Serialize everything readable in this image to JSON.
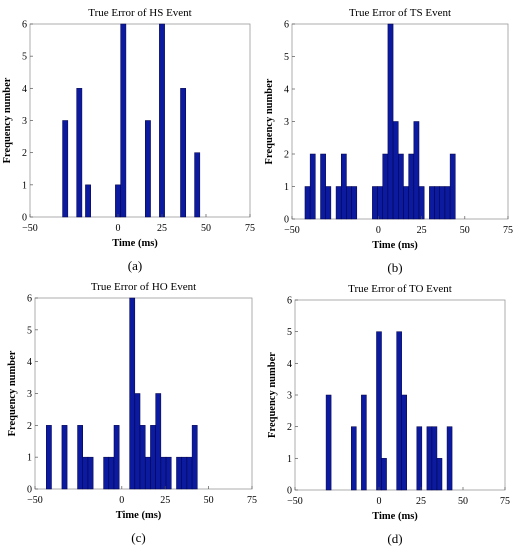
{
  "chart_data": [
    {
      "type": "bar",
      "panel_label": "(a)",
      "title": "True Error of HS Event",
      "xlabel": "Time (ms)",
      "ylabel": "Frequency number",
      "xlim": [
        -50,
        75
      ],
      "ylim": [
        0,
        6
      ],
      "xticks": [
        -50,
        0,
        25,
        50,
        75
      ],
      "yticks": [
        0,
        1,
        2,
        3,
        4,
        5,
        6
      ],
      "bar_width": 3,
      "x": [
        -30,
        -22,
        -17,
        0,
        3,
        17,
        25,
        37,
        45
      ],
      "values": [
        3,
        4,
        1,
        1,
        6,
        3,
        6,
        4,
        2
      ],
      "bar_color": "#0b1a9e",
      "grid": false
    },
    {
      "type": "bar",
      "panel_label": "(b)",
      "title": "True Error of TS Event",
      "xlabel": "Time (ms)",
      "ylabel": "Frequency number",
      "xlim": [
        -50,
        75
      ],
      "ylim": [
        0,
        6
      ],
      "xticks": [
        -50,
        0,
        25,
        50,
        75
      ],
      "yticks": [
        0,
        1,
        2,
        3,
        4,
        5,
        6
      ],
      "bar_width": 3,
      "x": [
        -41,
        -38,
        -35,
        -32,
        -29,
        -26,
        -23,
        -20,
        -17,
        -14,
        -11,
        -8,
        -5,
        -2,
        1,
        4,
        7,
        10,
        13,
        16,
        19,
        22,
        25,
        28,
        31,
        34,
        37,
        40,
        43,
        46,
        49,
        52
      ],
      "values": [
        1,
        2,
        0,
        2,
        1,
        0,
        1,
        2,
        1,
        1,
        0,
        0,
        0,
        1,
        1,
        2,
        6,
        3,
        2,
        1,
        2,
        3,
        1,
        0,
        1,
        1,
        1,
        1,
        2,
        0,
        0,
        0
      ],
      "bar_color": "#0b1a9e",
      "grid": false
    },
    {
      "type": "bar",
      "panel_label": "(c)",
      "title": "True Error of HO Event",
      "xlabel": "Time (ms)",
      "ylabel": "Frequency number",
      "xlim": [
        -50,
        75
      ],
      "ylim": [
        0,
        6
      ],
      "xticks": [
        -50,
        0,
        25,
        50,
        75
      ],
      "yticks": [
        0,
        1,
        2,
        3,
        4,
        5,
        6
      ],
      "bar_width": 3,
      "x": [
        -42,
        -33,
        -24,
        -21,
        -18,
        -9,
        -6,
        -3,
        6,
        9,
        12,
        15,
        18,
        21,
        24,
        27,
        33,
        36,
        39,
        42,
        45,
        48
      ],
      "values": [
        2,
        2,
        2,
        1,
        1,
        1,
        1,
        2,
        6,
        3,
        2,
        1,
        2,
        3,
        1,
        1,
        1,
        1,
        1,
        2,
        0,
        0
      ],
      "bar_color": "#0b1a9e",
      "grid": false
    },
    {
      "type": "bar",
      "panel_label": "(d)",
      "title": "True Error of TO Event",
      "xlabel": "Time (ms)",
      "ylabel": "Frequency number",
      "xlim": [
        -50,
        75
      ],
      "ylim": [
        0,
        6
      ],
      "xticks": [
        -50,
        0,
        25,
        50,
        75
      ],
      "yticks": [
        0,
        1,
        2,
        3,
        4,
        5,
        6
      ],
      "bar_width": 3,
      "x": [
        -30,
        -15,
        -9,
        0,
        3,
        12,
        15,
        24,
        30,
        33,
        36,
        42
      ],
      "values": [
        3,
        2,
        3,
        5,
        1,
        5,
        3,
        2,
        2,
        2,
        1,
        2
      ],
      "bar_color": "#0b1a9e",
      "grid": false
    }
  ]
}
